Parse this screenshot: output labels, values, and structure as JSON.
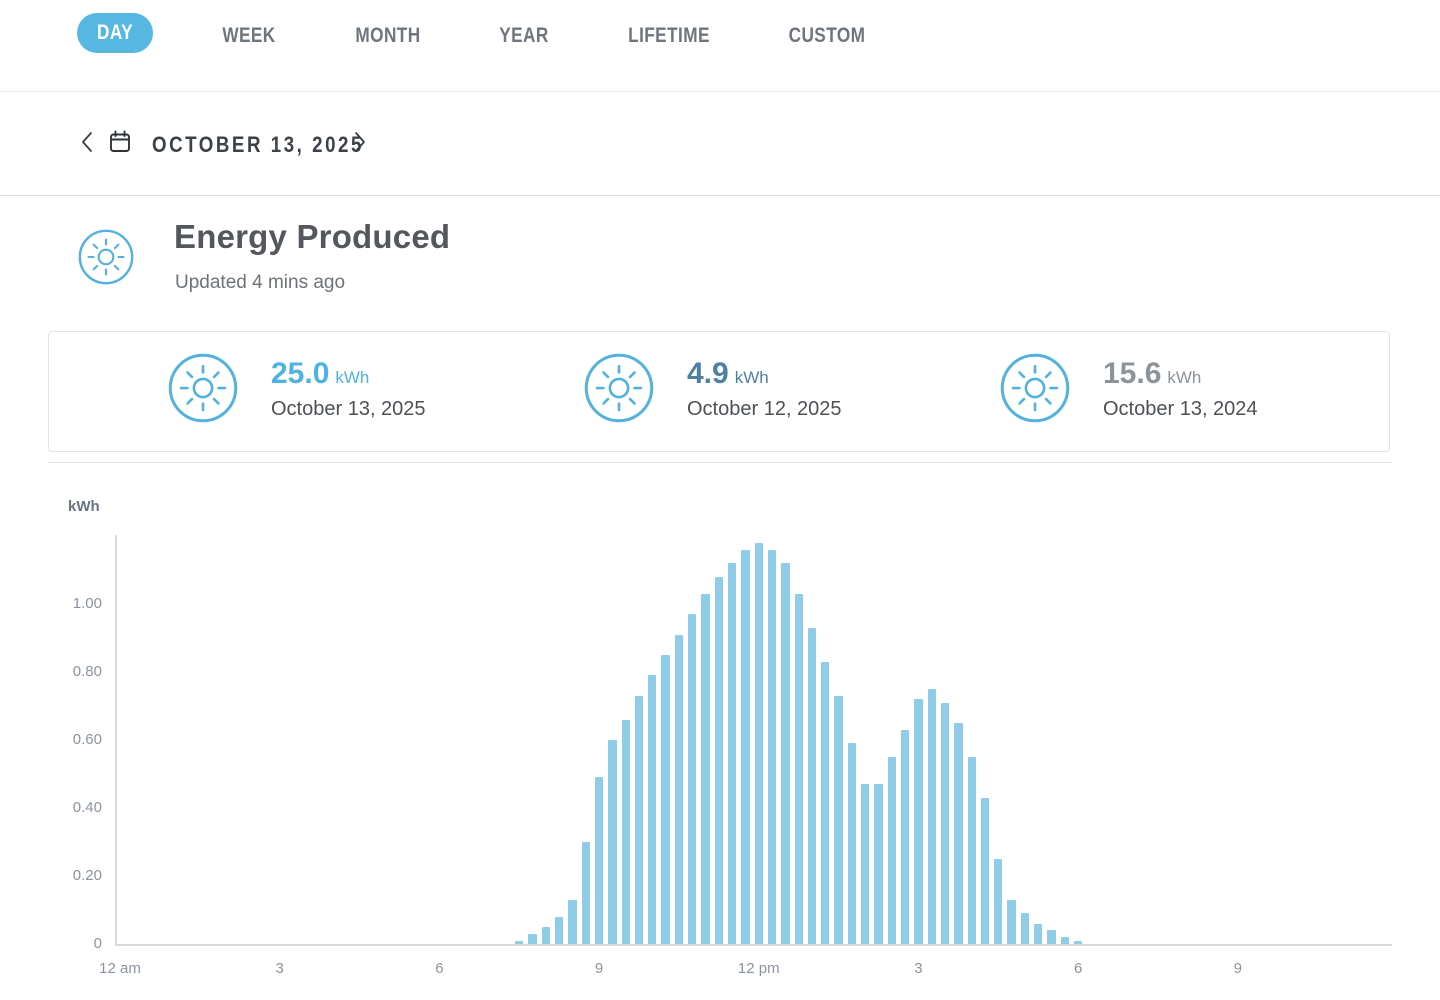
{
  "tabs": {
    "active_color": "#56b7e0",
    "items": [
      {
        "label": "DAY",
        "active": true
      },
      {
        "label": "WEEK",
        "active": false
      },
      {
        "label": "MONTH",
        "active": false
      },
      {
        "label": "YEAR",
        "active": false
      },
      {
        "label": "LIFETIME",
        "active": false
      },
      {
        "label": "CUSTOM",
        "active": false
      }
    ]
  },
  "datebar": {
    "date": "OCTOBER 13, 2025"
  },
  "header": {
    "title": "Energy Produced",
    "updated": "Updated 4 mins ago",
    "icon": "sun-icon",
    "icon_color": "#53b2dd"
  },
  "stats": {
    "icon": "sun-icon",
    "icon_color": "#53b2dd",
    "items": [
      {
        "value": "25.0",
        "unit": "kWh",
        "date": "October 13, 2025",
        "value_color": "#4fb2e3"
      },
      {
        "value": "4.9",
        "unit": "kWh",
        "date": "October 12, 2025",
        "value_color": "#4e80a2"
      },
      {
        "value": "15.6",
        "unit": "kWh",
        "date": "October 13, 2024",
        "value_color": "#8c9399"
      }
    ]
  },
  "chart_data": {
    "type": "bar",
    "title": "Energy Produced",
    "ylabel": "kWh",
    "unit": "kWh",
    "interval_minutes": 15,
    "grid": false,
    "legend": false,
    "ylim": [
      0,
      1.2
    ],
    "y_ticks": [
      "0",
      "0.20",
      "0.40",
      "0.60",
      "0.80",
      "1.00"
    ],
    "y_tick_values": [
      0,
      0.2,
      0.4,
      0.6,
      0.8,
      1.0
    ],
    "x_tick_labels": [
      "12 am",
      "3",
      "6",
      "9",
      "12 pm",
      "3",
      "6",
      "9"
    ],
    "x_tick_hours": [
      0,
      3,
      6,
      9,
      12,
      15,
      18,
      21
    ],
    "bar_color": "#8fcce8",
    "axis_color": "#d5dade",
    "label_color": "#8a94a0",
    "times": [
      "07:30",
      "07:45",
      "08:00",
      "08:15",
      "08:30",
      "08:45",
      "09:00",
      "09:15",
      "09:30",
      "09:45",
      "10:00",
      "10:15",
      "10:30",
      "10:45",
      "11:00",
      "11:15",
      "11:30",
      "11:45",
      "12:00",
      "12:15",
      "12:30",
      "12:45",
      "13:00",
      "13:15",
      "13:30",
      "13:45",
      "14:00",
      "14:15",
      "14:30",
      "14:45",
      "15:00",
      "15:15",
      "15:30",
      "15:45",
      "16:00",
      "16:15",
      "16:30",
      "16:45",
      "17:00",
      "17:15",
      "17:30",
      "17:45",
      "18:00"
    ],
    "values": [
      0.01,
      0.03,
      0.05,
      0.08,
      0.13,
      0.3,
      0.49,
      0.6,
      0.66,
      0.73,
      0.79,
      0.85,
      0.91,
      0.97,
      1.03,
      1.08,
      1.12,
      1.16,
      1.18,
      1.16,
      1.12,
      1.03,
      0.93,
      0.83,
      0.73,
      0.59,
      0.47,
      0.47,
      0.55,
      0.63,
      0.72,
      0.75,
      0.71,
      0.65,
      0.55,
      0.43,
      0.25,
      0.13,
      0.09,
      0.06,
      0.04,
      0.02,
      0.01
    ]
  }
}
